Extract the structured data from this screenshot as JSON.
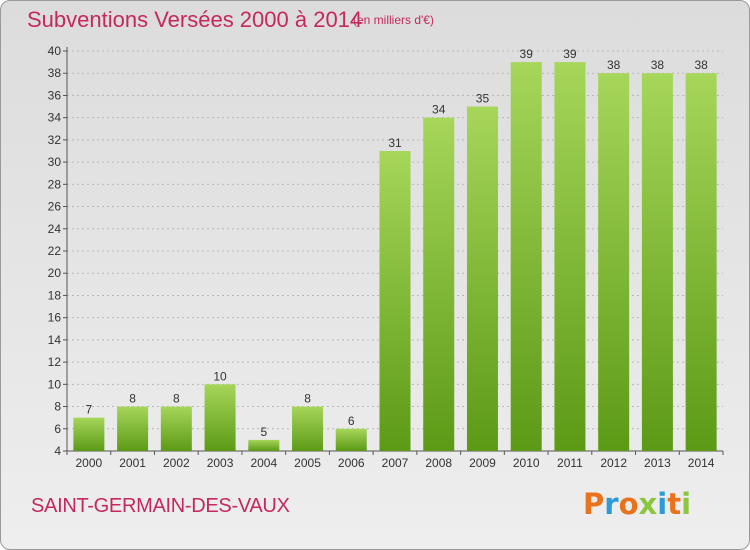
{
  "header": {
    "title": "Subventions Versées 2000 à 2014",
    "subtitle": "(en milliers d'€)"
  },
  "commune": "SAINT-GERMAIN-DES-VAUX",
  "logo": {
    "text": "Proxiti",
    "colors": [
      "#e8731c",
      "#2e9bd6",
      "#e8731c",
      "#8cc63f",
      "#2e9bd6",
      "#e8731c",
      "#8cc63f"
    ]
  },
  "colors": {
    "title": "#c5285c",
    "bar_top": "#a6d65a",
    "bar_bottom": "#5c9a16",
    "grid": "#b8b8b8"
  },
  "chart_data": {
    "type": "bar",
    "categories": [
      "2000",
      "2001",
      "2002",
      "2003",
      "2004",
      "2005",
      "2006",
      "2007",
      "2008",
      "2009",
      "2010",
      "2011",
      "2012",
      "2013",
      "2014"
    ],
    "values": [
      7,
      8,
      8,
      10,
      5,
      8,
      6,
      31,
      34,
      35,
      39,
      39,
      38,
      38,
      38
    ],
    "ylim": [
      4,
      40
    ],
    "yticks": [
      4,
      6,
      8,
      10,
      12,
      14,
      16,
      18,
      20,
      22,
      24,
      26,
      28,
      30,
      32,
      34,
      36,
      38,
      40
    ],
    "grid": true,
    "legend": "none"
  }
}
